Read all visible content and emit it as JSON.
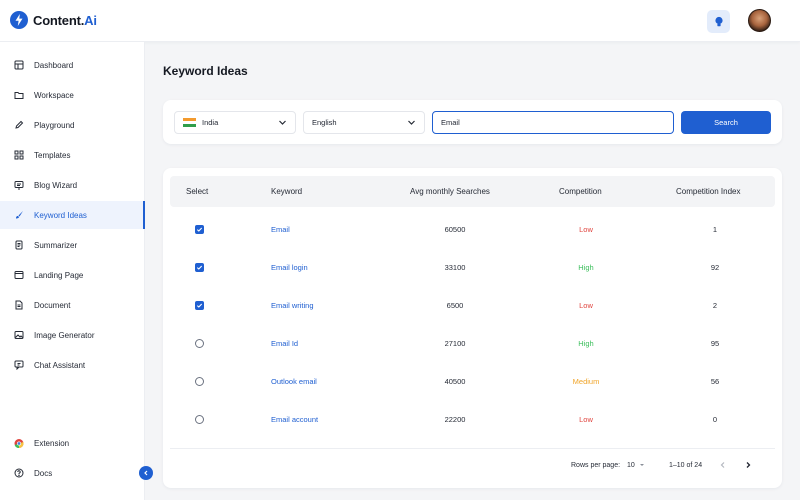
{
  "app": {
    "logo_prefix": "Content.",
    "logo_suffix": "Ai"
  },
  "header": {
    "icons": [
      "lightbulb-icon",
      "avatar"
    ]
  },
  "sidebar": {
    "items": [
      {
        "label": "Dashboard",
        "icon": "dashboard-icon"
      },
      {
        "label": "Workspace",
        "icon": "folder-icon"
      },
      {
        "label": "Playground",
        "icon": "pencil-icon"
      },
      {
        "label": "Templates",
        "icon": "grid-icon"
      },
      {
        "label": "Blog Wizard",
        "icon": "blog-icon"
      },
      {
        "label": "Keyword Ideas",
        "icon": "brush-icon",
        "active": true
      },
      {
        "label": "Summarizer",
        "icon": "document-icon"
      },
      {
        "label": "Landing Page",
        "icon": "browser-icon"
      },
      {
        "label": "Document",
        "icon": "file-icon"
      },
      {
        "label": "Image Generator",
        "icon": "image-icon"
      },
      {
        "label": "Chat Assistant",
        "icon": "chat-icon"
      }
    ],
    "bottom_items": [
      {
        "label": "Extension",
        "icon": "chrome-icon"
      },
      {
        "label": "Docs",
        "icon": "help-icon"
      }
    ]
  },
  "main": {
    "title": "Keyword Ideas",
    "search": {
      "country": "India",
      "language": "English",
      "keyword_value": "Email",
      "button_label": "Search"
    },
    "table": {
      "headers": [
        "Select",
        "Keyword",
        "Avg monthly Searches",
        "Competition",
        "Competition Index"
      ],
      "rows": [
        {
          "checked": true,
          "keyword": "Email",
          "searches": "60500",
          "competition": "Low",
          "index": "1"
        },
        {
          "checked": true,
          "keyword": "Email login",
          "searches": "33100",
          "competition": "High",
          "index": "92"
        },
        {
          "checked": true,
          "keyword": "Email writing",
          "searches": "6500",
          "competition": "Low",
          "index": "2"
        },
        {
          "checked": false,
          "keyword": "Email Id",
          "searches": "27100",
          "competition": "High",
          "index": "95"
        },
        {
          "checked": false,
          "keyword": "Outlook email",
          "searches": "40500",
          "competition": "Medium",
          "index": "56"
        },
        {
          "checked": false,
          "keyword": "Email account",
          "searches": "22200",
          "competition": "Low",
          "index": "0"
        }
      ]
    },
    "pagination": {
      "rows_per_page_label": "Rows per page:",
      "rows_per_page": "10",
      "range": "1–10 of 24"
    }
  },
  "colors": {
    "accent": "#1f5fd1",
    "low": "#e0443e",
    "high": "#3cbf5c",
    "medium": "#f0a52a"
  }
}
